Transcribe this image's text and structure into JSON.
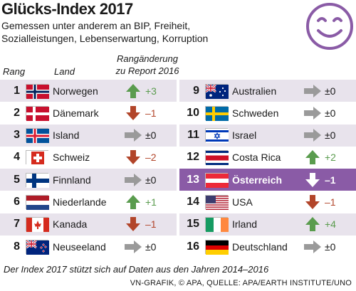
{
  "header": {
    "title": "Glücks-Index 2017",
    "subtitle": "Gemessen unter anderem an BIP, Freiheit, Sozialleistungen, Lebenserwartung, Korruption"
  },
  "columns": {
    "rank": "Rang",
    "country": "Land",
    "change": "Rangänderung zu Report 2016"
  },
  "colors": {
    "up": "#5a9c4e",
    "down": "#b2452a",
    "same": "#9a9a9a",
    "highlight": "#8a5ba6",
    "shaded": "#e8e3ec"
  },
  "left_table": [
    {
      "rank": "1",
      "country": "Norwegen",
      "flag": "norway-flag",
      "direction": "up",
      "change": "+3"
    },
    {
      "rank": "2",
      "country": "Dänemark",
      "flag": "denmark-flag",
      "direction": "down",
      "change": "–1"
    },
    {
      "rank": "3",
      "country": "Island",
      "flag": "iceland-flag",
      "direction": "same",
      "change": "±0"
    },
    {
      "rank": "4",
      "country": "Schweiz",
      "flag": "switzerland-flag",
      "direction": "down",
      "change": "–2"
    },
    {
      "rank": "5",
      "country": "Finnland",
      "flag": "finland-flag",
      "direction": "same",
      "change": "±0"
    },
    {
      "rank": "6",
      "country": "Niederlande",
      "flag": "netherlands-flag",
      "direction": "up",
      "change": "+1"
    },
    {
      "rank": "7",
      "country": "Kanada",
      "flag": "canada-flag",
      "direction": "down",
      "change": "–1"
    },
    {
      "rank": "8",
      "country": "Neuseeland",
      "flag": "new-zealand-flag",
      "direction": "same",
      "change": "±0"
    }
  ],
  "right_table": [
    {
      "rank": "9",
      "country": "Australien",
      "flag": "australia-flag",
      "direction": "same",
      "change": "±0"
    },
    {
      "rank": "10",
      "country": "Schweden",
      "flag": "sweden-flag",
      "direction": "same",
      "change": "±0"
    },
    {
      "rank": "11",
      "country": "Israel",
      "flag": "israel-flag",
      "direction": "same",
      "change": "±0"
    },
    {
      "rank": "12",
      "country": "Costa Rica",
      "flag": "costa-rica-flag",
      "direction": "up",
      "change": "+2"
    },
    {
      "rank": "13",
      "country": "Österreich",
      "flag": "austria-flag",
      "direction": "down",
      "change": "–1"
    },
    {
      "rank": "14",
      "country": "USA",
      "flag": "usa-flag",
      "direction": "down",
      "change": "–1"
    },
    {
      "rank": "15",
      "country": "Irland",
      "flag": "ireland-flag",
      "direction": "up",
      "change": "+4"
    },
    {
      "rank": "16",
      "country": "Deutschland",
      "flag": "germany-flag",
      "direction": "same",
      "change": "±0"
    }
  ],
  "footer": {
    "note": "Der Index 2017 stützt sich auf Daten aus den Jahren 2014–2016",
    "source": "VN-GRAFIK, © APA, QUELLE: APA/EARTH INSTITUTE/UNO"
  }
}
